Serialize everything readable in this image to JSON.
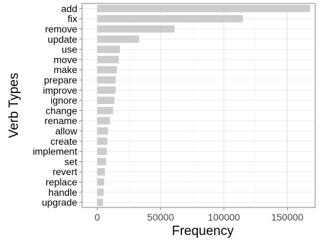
{
  "chart_data": {
    "type": "bar",
    "orientation": "horizontal",
    "xlabel": "Frequency",
    "ylabel": "Verb Types",
    "xlim": [
      -12000,
      172000
    ],
    "x_ticks": [
      0,
      50000,
      100000,
      150000
    ],
    "x_tick_labels": [
      "0",
      "50000",
      "100000",
      "150000"
    ],
    "grid": true,
    "bar_color": "#cccccc",
    "categories": [
      "add",
      "fix",
      "remove",
      "update",
      "use",
      "move",
      "make",
      "prepare",
      "improve",
      "ignore",
      "change",
      "rename",
      "allow",
      "create",
      "implement",
      "set",
      "revert",
      "replace",
      "handle",
      "upgrade"
    ],
    "values": [
      168000,
      115000,
      61000,
      33000,
      18000,
      17000,
      15500,
      14500,
      14500,
      13500,
      12500,
      10000,
      8500,
      8000,
      7500,
      7000,
      6000,
      5500,
      5000,
      4500
    ]
  }
}
